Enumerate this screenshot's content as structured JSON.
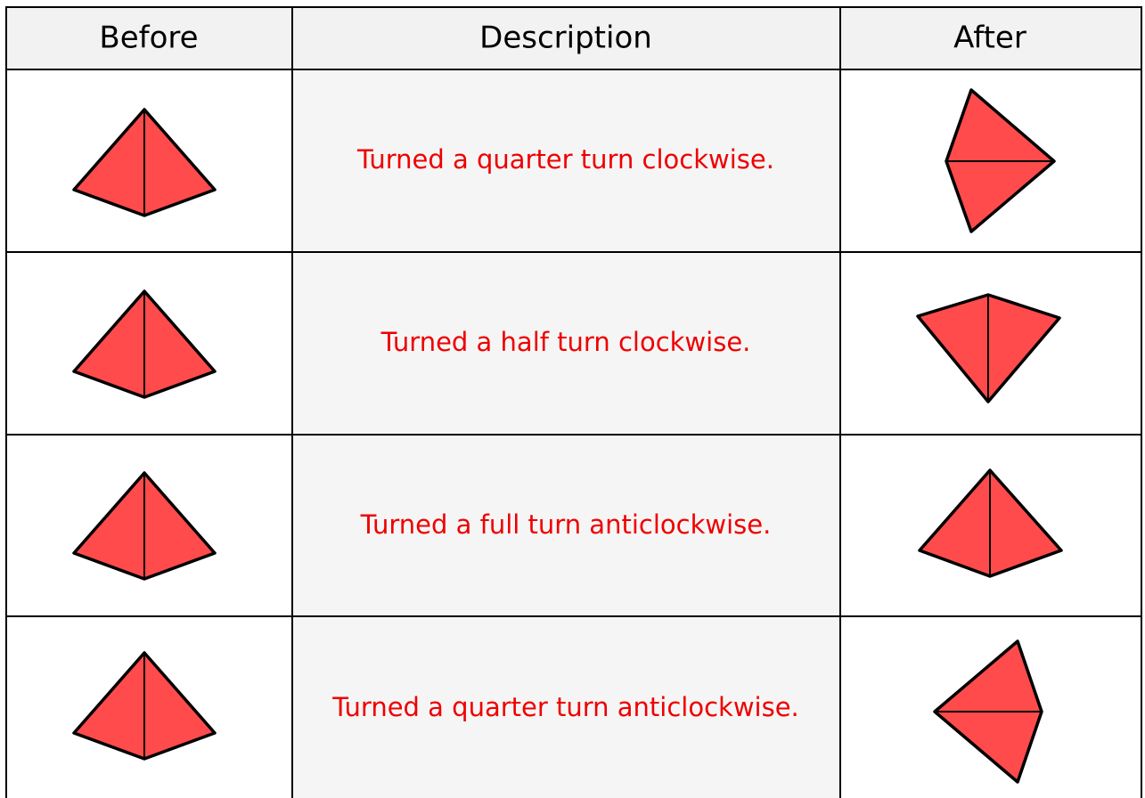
{
  "table": {
    "header": [
      "Before",
      "Description",
      "After"
    ],
    "rows": [
      {
        "description": "Turned a quarter turn clockwise."
      },
      {
        "description": "Turned a half turn clockwise."
      },
      {
        "description": "Turned a full turn anticlockwise."
      },
      {
        "description": "Turned a quarter turn anticlockwise."
      }
    ]
  }
}
